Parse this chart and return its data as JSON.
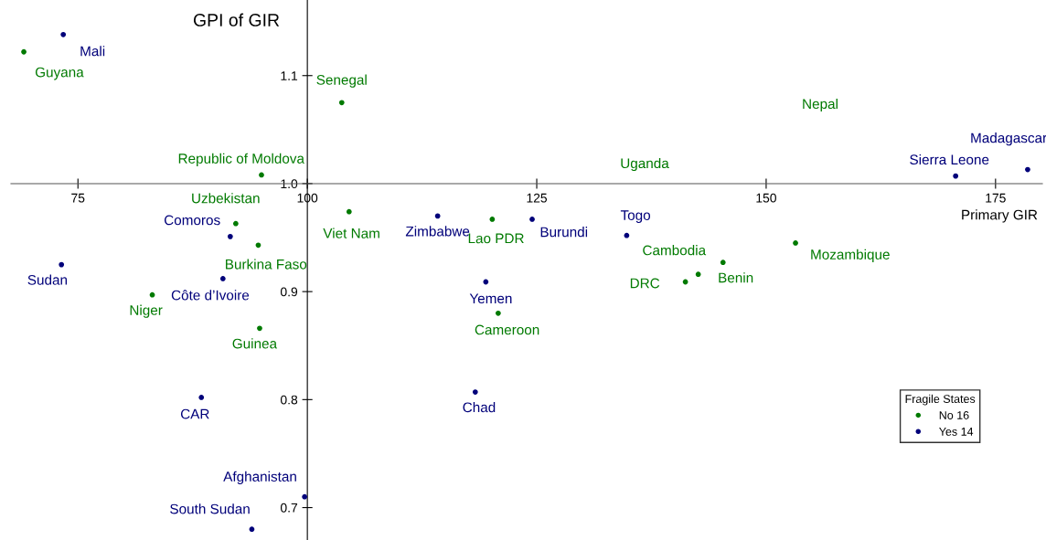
{
  "chart_data": {
    "type": "scatter",
    "xlabel": "Primary GIR",
    "ylabel": "GPI of GIR",
    "legend_title": "Fragile States",
    "legend": "bottom right",
    "marker": "circle",
    "grid": false,
    "xlim": [
      67.7,
      180.1
    ],
    "ylim": [
      0.67,
      1.17
    ],
    "xticks": [
      75,
      100,
      125,
      150,
      175
    ],
    "yticks": [
      0.7,
      0.8,
      0.9,
      {
        "value": 1.0,
        "label": "1.0"
      },
      1.1
    ],
    "series": [
      {
        "name": "No 16",
        "color": "#007a00",
        "x": [
          69.1,
          103.75,
          95.0,
          92.2,
          94.65,
          104.55,
          83.1,
          94.8,
          120.15,
          120.8,
          142.6,
          141.2,
          145.3,
          153.2
        ],
        "values": [
          1.122,
          1.075,
          1.008,
          0.963,
          0.943,
          0.974,
          0.897,
          0.866,
          0.967,
          0.88,
          0.916,
          0.909,
          0.927,
          0.945
        ]
      },
      {
        "name": "Yes 14",
        "color": "#00007a",
        "x": [
          73.4,
          91.6,
          73.2,
          90.8,
          88.45,
          99.7,
          93.95,
          114.2,
          124.5,
          134.8,
          119.45,
          118.3,
          170.65,
          178.5
        ],
        "values": [
          1.138,
          0.951,
          0.925,
          0.912,
          0.802,
          0.71,
          0.68,
          0.97,
          0.967,
          0.952,
          0.909,
          0.807,
          1.007,
          1.013
        ]
      }
    ],
    "annotations": [
      {
        "text": "Guyana",
        "x": 69.1,
        "y": 1.122
      },
      {
        "text": "Senegal",
        "x": 103.75,
        "y": 1.075
      },
      {
        "text": "Republic of Moldova",
        "x": 95.0,
        "y": 1.008
      },
      {
        "text": "Uzbekistan",
        "x": 92.2,
        "y": 0.963
      },
      {
        "text": "Burkina Faso",
        "x": 94.65,
        "y": 0.943
      },
      {
        "text": "Viet Nam",
        "x": 104.55,
        "y": 0.974
      },
      {
        "text": "Niger",
        "x": 83.1,
        "y": 0.897
      },
      {
        "text": "Guinea",
        "x": 94.8,
        "y": 0.866
      },
      {
        "text": "Lao PDR",
        "x": 120.15,
        "y": 0.967
      },
      {
        "text": "Cameroon",
        "x": 120.8,
        "y": 0.88
      },
      {
        "text": "Cambodia",
        "x": 142.6,
        "y": 0.916
      },
      {
        "text": "DRC",
        "x": 141.2,
        "y": 0.909
      },
      {
        "text": "Benin",
        "x": 145.3,
        "y": 0.927
      },
      {
        "text": "Mozambique",
        "x": 153.2,
        "y": 0.945
      },
      {
        "text": "Mali",
        "x": 73.4,
        "y": 1.138
      },
      {
        "text": "Comoros",
        "x": 91.6,
        "y": 0.951
      },
      {
        "text": "Sudan",
        "x": 73.2,
        "y": 0.925
      },
      {
        "text": "Côte d’Ivoire",
        "x": 90.8,
        "y": 0.912
      },
      {
        "text": "CAR",
        "x": 88.45,
        "y": 0.802
      },
      {
        "text": "Afghanistan",
        "x": 99.7,
        "y": 0.71
      },
      {
        "text": "South Sudan",
        "x": 93.95,
        "y": 0.68
      },
      {
        "text": "Zimbabwe",
        "x": 114.2,
        "y": 0.97
      },
      {
        "text": "Burundi",
        "x": 124.5,
        "y": 0.967
      },
      {
        "text": "Togo",
        "x": 134.8,
        "y": 0.952
      },
      {
        "text": "Yemen",
        "x": 119.45,
        "y": 0.909
      },
      {
        "text": "Chad",
        "x": 118.3,
        "y": 0.807
      },
      {
        "text": "Sierra Leone",
        "x": 170.65,
        "y": 1.007
      },
      {
        "text": "Madagascar",
        "x": 178.5,
        "y": 1.013
      },
      "Nepal",
      "Uganda"
    ]
  }
}
